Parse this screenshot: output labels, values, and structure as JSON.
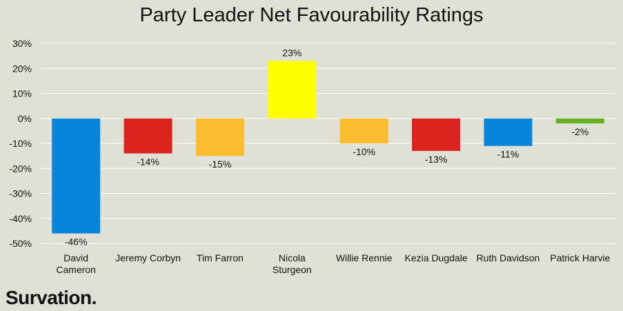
{
  "chart_data": {
    "type": "bar",
    "title": "Party Leader Net Favourability Ratings",
    "xlabel": "",
    "ylabel": "",
    "ylim": [
      -50,
      30
    ],
    "yticks": [
      "30%",
      "20%",
      "10%",
      "0%",
      "-10%",
      "-20%",
      "-30%",
      "-40%",
      "-50%"
    ],
    "ytick_values": [
      30,
      20,
      10,
      0,
      -10,
      -20,
      -30,
      -40,
      -50
    ],
    "grid": true,
    "legend": "none",
    "categories": [
      "David\nCameron",
      "Jeremy Corbyn",
      "Tim Farron",
      "Nicola\nSturgeon",
      "Willie Rennie",
      "Kezia Dugdale",
      "Ruth Davidson",
      "Patrick Harvie"
    ],
    "values": [
      -46,
      -14,
      -15,
      23,
      -10,
      -13,
      -11,
      -2
    ],
    "data_labels": [
      "-46%",
      "-14%",
      "-15%",
      "23%",
      "-10%",
      "-13%",
      "-11%",
      "-2%"
    ],
    "colors": [
      "#0a85dc",
      "#dc241f",
      "#fdbb30",
      "#ffff00",
      "#fdbb30",
      "#dc241f",
      "#0a85dc",
      "#6ab023"
    ]
  },
  "brand": "Survation."
}
